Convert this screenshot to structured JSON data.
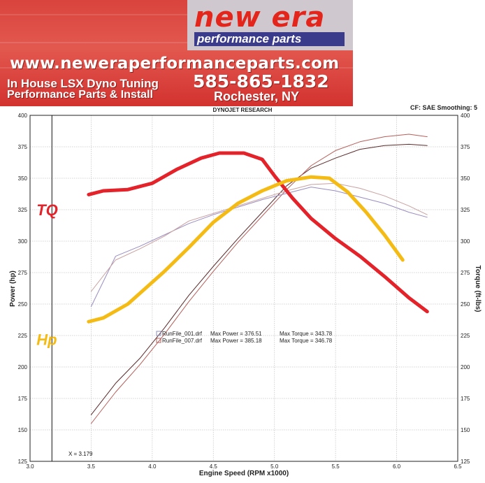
{
  "banner": {
    "brand": "new era",
    "tagline": "performance parts",
    "website": "www.neweraperformanceparts.com",
    "service_line1": "In House LSX Dyno Tuning",
    "service_line2": "Performance Parts & Install",
    "phone": "585-865-1832",
    "city": "Rochester, NY"
  },
  "header": {
    "title": "DYNOJET RESEARCH",
    "settings": "CF: SAE  Smoothing: 5"
  },
  "cursor_label": "X = 3.179",
  "colors": {
    "tq_marker": "#e3222a",
    "hp_marker": "#f5bb15",
    "run1_power": "#5a2a2a",
    "run1_torque": "#9a8dc0",
    "run7_power": "#b55f5a",
    "run7_torque": "#c9a1a1"
  },
  "chart_data": {
    "type": "line",
    "xlabel": "Engine Speed (RPM x1000)",
    "ylabel": "Power (hp)",
    "y2label": "Torque (ft-lbs)",
    "xlim": [
      3.0,
      6.5
    ],
    "ylim": [
      125,
      400
    ],
    "y2lim": [
      125,
      400
    ],
    "x_ticks": [
      "3.0",
      "3.5",
      "4.0",
      "4.5",
      "5.0",
      "5.5",
      "6.0",
      "6.5"
    ],
    "y_ticks": [
      "125",
      "150",
      "175",
      "200",
      "225",
      "250",
      "275",
      "300",
      "325",
      "350",
      "375",
      "400"
    ],
    "y2_ticks": [
      "125",
      "150",
      "175",
      "200",
      "225",
      "250",
      "275",
      "300",
      "325",
      "350",
      "375",
      "400"
    ],
    "grid": true,
    "cursor_x": 3.179,
    "legend": [
      {
        "file": "RunFile_001.drf",
        "max_power_label": "Max Power = 376.51",
        "max_torque_label": "Max Torque = 343.78"
      },
      {
        "file": "RunFile_007.drf",
        "max_power_label": "Max Power = 385.18",
        "max_torque_label": "Max Torque = 346.78"
      }
    ],
    "annotations": [
      {
        "text": "TQ",
        "x": 3.35,
        "y": 325
      },
      {
        "text": "Hp",
        "x": 3.35,
        "y": 222
      }
    ],
    "series": [
      {
        "axis": "left",
        "color_key": "run1_power",
        "x": [
          3.5,
          3.7,
          3.9,
          4.1,
          4.3,
          4.5,
          4.7,
          4.9,
          5.1,
          5.3,
          5.5,
          5.7,
          5.9,
          6.1,
          6.25
        ],
        "values": [
          162,
          187,
          207,
          231,
          257,
          280,
          302,
          323,
          344,
          358,
          366,
          373,
          376,
          377,
          376
        ]
      },
      {
        "axis": "left",
        "color_key": "run7_power",
        "x": [
          3.5,
          3.7,
          3.9,
          4.1,
          4.3,
          4.5,
          4.7,
          4.9,
          5.1,
          5.3,
          5.5,
          5.7,
          5.9,
          6.1,
          6.25
        ],
        "values": [
          155,
          180,
          202,
          226,
          252,
          276,
          299,
          320,
          341,
          360,
          372,
          379,
          383,
          385,
          383
        ]
      },
      {
        "axis": "right",
        "color_key": "run1_torque",
        "x": [
          3.5,
          3.7,
          3.9,
          4.1,
          4.3,
          4.5,
          4.7,
          4.9,
          5.1,
          5.3,
          5.5,
          5.7,
          5.9,
          6.1,
          6.25
        ],
        "values": [
          248,
          288,
          296,
          305,
          314,
          321,
          327,
          333,
          338,
          343,
          340,
          335,
          330,
          323,
          319
        ]
      },
      {
        "axis": "right",
        "color_key": "run7_torque",
        "x": [
          3.5,
          3.7,
          3.9,
          4.1,
          4.3,
          4.5,
          4.7,
          4.9,
          5.1,
          5.3,
          5.5,
          5.7,
          5.9,
          6.1,
          6.25
        ],
        "values": [
          260,
          285,
          294,
          304,
          316,
          322,
          328,
          334,
          340,
          345,
          346,
          342,
          336,
          328,
          321
        ]
      },
      {
        "axis": "left",
        "color_key": "tq_marker",
        "width": 5,
        "x": [
          3.48,
          3.6,
          3.8,
          4.0,
          4.2,
          4.4,
          4.55,
          4.75,
          4.9,
          5.0,
          5.15,
          5.3,
          5.5,
          5.7,
          5.9,
          6.1,
          6.25
        ],
        "values": [
          337,
          340,
          341,
          346,
          357,
          366,
          370,
          370,
          365,
          352,
          334,
          318,
          302,
          288,
          272,
          255,
          244
        ]
      },
      {
        "axis": "left",
        "color_key": "hp_marker",
        "width": 5,
        "x": [
          3.48,
          3.6,
          3.8,
          3.95,
          4.1,
          4.3,
          4.5,
          4.7,
          4.9,
          5.1,
          5.3,
          5.45,
          5.6,
          5.75,
          5.9,
          6.05
        ],
        "values": [
          236,
          239,
          250,
          263,
          276,
          295,
          315,
          330,
          340,
          348,
          351,
          350,
          339,
          323,
          305,
          285
        ]
      }
    ]
  }
}
